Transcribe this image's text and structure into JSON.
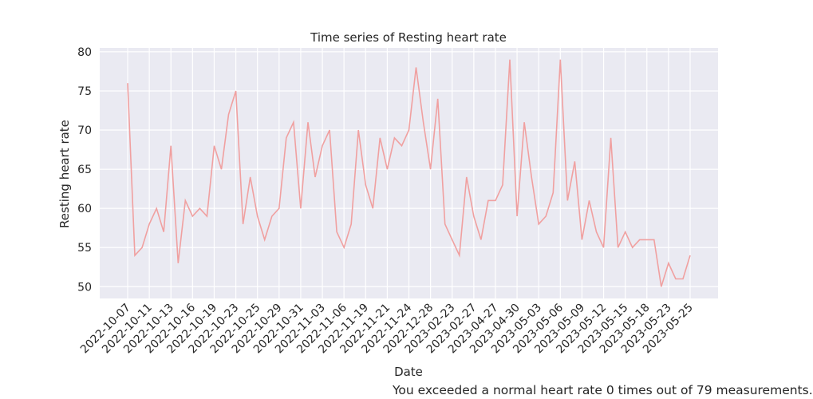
{
  "chart_data": {
    "type": "line",
    "title": "Time series of Resting heart rate",
    "xlabel": "Date",
    "ylabel": "Resting heart rate",
    "ylim": [
      48.5,
      80.5
    ],
    "yticks": [
      50,
      55,
      60,
      65,
      70,
      75,
      80
    ],
    "grid": true,
    "line_color": "#f0a0a0",
    "background_color": "#eaeaf2",
    "xtick_labels": [
      "2022-10-07",
      "2022-10-11",
      "2022-10-13",
      "2022-10-16",
      "2022-10-19",
      "2022-10-23",
      "2022-10-25",
      "2022-10-29",
      "2022-10-31",
      "2022-11-03",
      "2022-11-06",
      "2022-11-19",
      "2022-11-21",
      "2022-11-24",
      "2022-12-28",
      "2023-02-23",
      "2023-02-27",
      "2023-04-27",
      "2023-04-30",
      "2023-05-03",
      "2023-05-06",
      "2023-05-09",
      "2023-05-12",
      "2023-05-15",
      "2023-05-18",
      "2023-05-23",
      "2023-05-25"
    ],
    "series": [
      {
        "values": [
          76,
          54,
          55,
          58,
          60,
          57,
          68,
          53,
          61,
          59,
          60,
          59,
          68,
          65,
          72,
          75,
          58,
          64,
          59,
          56,
          59,
          60,
          69,
          71,
          60,
          71,
          64,
          68,
          70,
          57,
          55,
          58,
          70,
          63,
          60,
          69,
          65,
          69,
          68,
          70,
          78,
          71,
          65,
          74,
          58,
          56,
          54,
          64,
          59,
          56,
          61,
          61,
          63,
          79,
          59,
          71,
          64,
          58,
          59,
          62,
          79,
          61,
          66,
          56,
          61,
          57,
          55,
          69,
          55,
          57,
          55,
          56,
          56,
          56,
          50,
          53,
          51,
          51,
          54
        ]
      }
    ]
  },
  "footnote": "You exceeded a normal heart rate 0 times out of 79 measurements."
}
